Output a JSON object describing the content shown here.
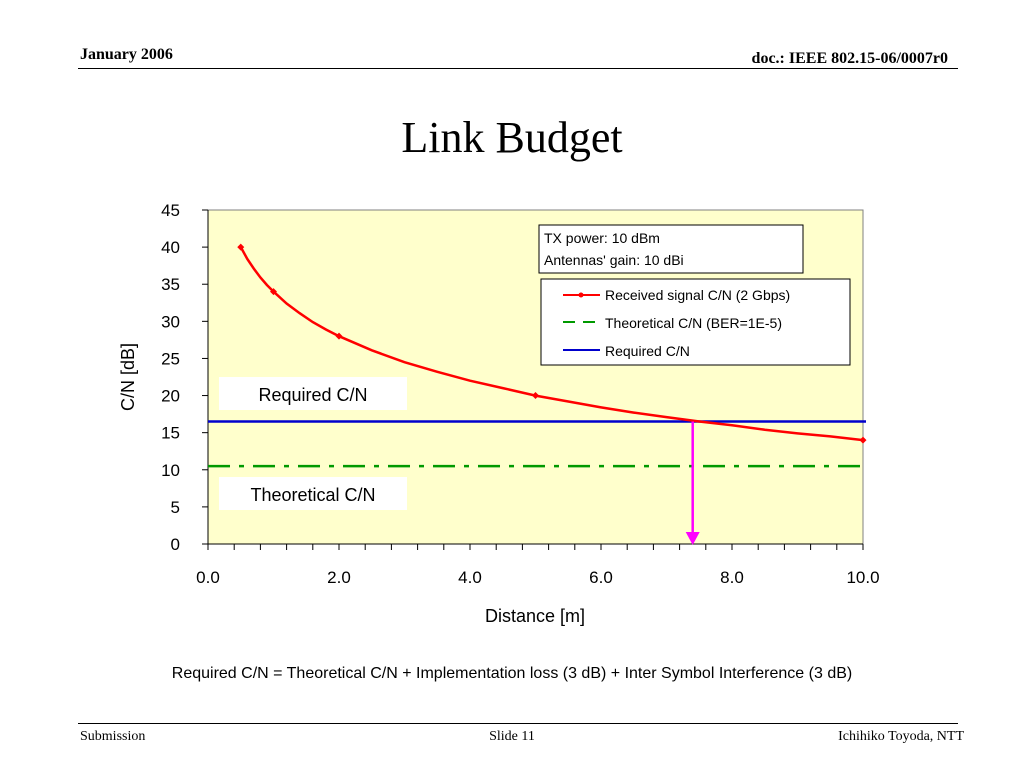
{
  "header": {
    "date": "January 2006",
    "doc": "doc.: IEEE 802.15-06/0007r0"
  },
  "title": "Link Budget",
  "chart_data": {
    "type": "line",
    "xlabel": "Distance [m]",
    "ylabel": "C/N [dB]",
    "xlim": [
      0,
      10
    ],
    "ylim": [
      0,
      45
    ],
    "x_ticks": [
      "0.0",
      "2.0",
      "4.0",
      "6.0",
      "8.0",
      "10.0"
    ],
    "y_ticks": [
      "0",
      "5",
      "10",
      "15",
      "20",
      "25",
      "30",
      "35",
      "40",
      "45"
    ],
    "plot_background": "#ffffcc",
    "info_box": [
      "TX power: 10 dBm",
      "Antennas' gain: 10 dBi"
    ],
    "legend": [
      {
        "label": "Received signal C/N (2 Gbps)",
        "color": "#ff0000",
        "style": "solid-markers"
      },
      {
        "label": "Theoretical C/N (BER=1E-5)",
        "color": "#009900",
        "style": "dashed"
      },
      {
        "label": "Required C/N",
        "color": "#0000cc",
        "style": "solid"
      }
    ],
    "series": [
      {
        "name": "Received signal C/N (2 Gbps)",
        "color": "#ff0000",
        "x": [
          0.5,
          0.6,
          0.7,
          0.8,
          0.9,
          1.0,
          1.2,
          1.4,
          1.6,
          1.8,
          2.0,
          2.5,
          3.0,
          3.5,
          4.0,
          4.5,
          5.0,
          5.5,
          6.0,
          6.5,
          7.0,
          7.5,
          8.0,
          8.5,
          9.0,
          9.5,
          10.0
        ],
        "y": [
          40.0,
          38.4,
          37.1,
          35.9,
          34.9,
          34.0,
          32.4,
          31.1,
          29.9,
          28.9,
          28.0,
          26.1,
          24.5,
          23.2,
          22.0,
          21.0,
          20.0,
          19.2,
          18.4,
          17.7,
          17.1,
          16.5,
          16.0,
          15.4,
          14.9,
          14.5,
          14.0
        ],
        "markers_x": [
          0.5,
          1.0,
          2.0,
          5.0,
          10.0
        ]
      },
      {
        "name": "Theoretical C/N (BER=1E-5)",
        "color": "#009900",
        "constant": 10.5
      },
      {
        "name": "Required C/N",
        "color": "#0000cc",
        "constant": 16.5
      }
    ],
    "annotations": [
      {
        "text": "Required C/N"
      },
      {
        "text": "Theoretical C/N"
      }
    ],
    "arrow": {
      "color": "#ff00ff",
      "x": 7.4,
      "from_y": 16.5,
      "to_y": 0
    }
  },
  "formula": "Required C/N = Theoretical C/N + Implementation loss (3 dB) + Inter Symbol Interference (3 dB)",
  "footer": {
    "left": "Submission",
    "center": "Slide 11",
    "right": "Ichihiko Toyoda, NTT"
  }
}
